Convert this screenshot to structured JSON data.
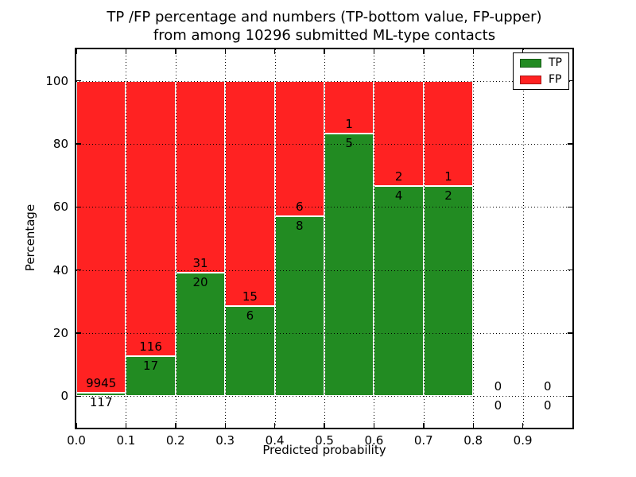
{
  "chart_data": {
    "type": "bar",
    "stacked": true,
    "title_line1": "TP /FP percentage and numbers (TP-bottom value, FP-upper)",
    "title_line2": "from among 10296 submitted ML-type contacts",
    "xlabel": "Predicted probability",
    "ylabel": "Percentage",
    "xlim": [
      0.0,
      1.0
    ],
    "ylim": [
      -10,
      110
    ],
    "bin_width": 0.1,
    "x_ticks": [
      "0.0",
      "0.1",
      "0.2",
      "0.3",
      "0.4",
      "0.5",
      "0.6",
      "0.7",
      "0.8",
      "0.9"
    ],
    "y_ticks": [
      0,
      20,
      40,
      60,
      80,
      100
    ],
    "grid": "dotted",
    "legend_position": "upper right",
    "total_contacts": 10296,
    "series": [
      {
        "name": "TP",
        "color": "#228b22"
      },
      {
        "name": "FP",
        "color": "#ff2222"
      }
    ],
    "bins": [
      {
        "x": 0.0,
        "tp": 117,
        "fp": 9945
      },
      {
        "x": 0.1,
        "tp": 17,
        "fp": 116
      },
      {
        "x": 0.2,
        "tp": 20,
        "fp": 31
      },
      {
        "x": 0.3,
        "tp": 6,
        "fp": 15
      },
      {
        "x": 0.4,
        "tp": 8,
        "fp": 6
      },
      {
        "x": 0.5,
        "tp": 5,
        "fp": 1
      },
      {
        "x": 0.6,
        "tp": 4,
        "fp": 2
      },
      {
        "x": 0.7,
        "tp": 2,
        "fp": 1
      },
      {
        "x": 0.8,
        "tp": 0,
        "fp": 0
      },
      {
        "x": 0.9,
        "tp": 0,
        "fp": 0
      }
    ]
  }
}
